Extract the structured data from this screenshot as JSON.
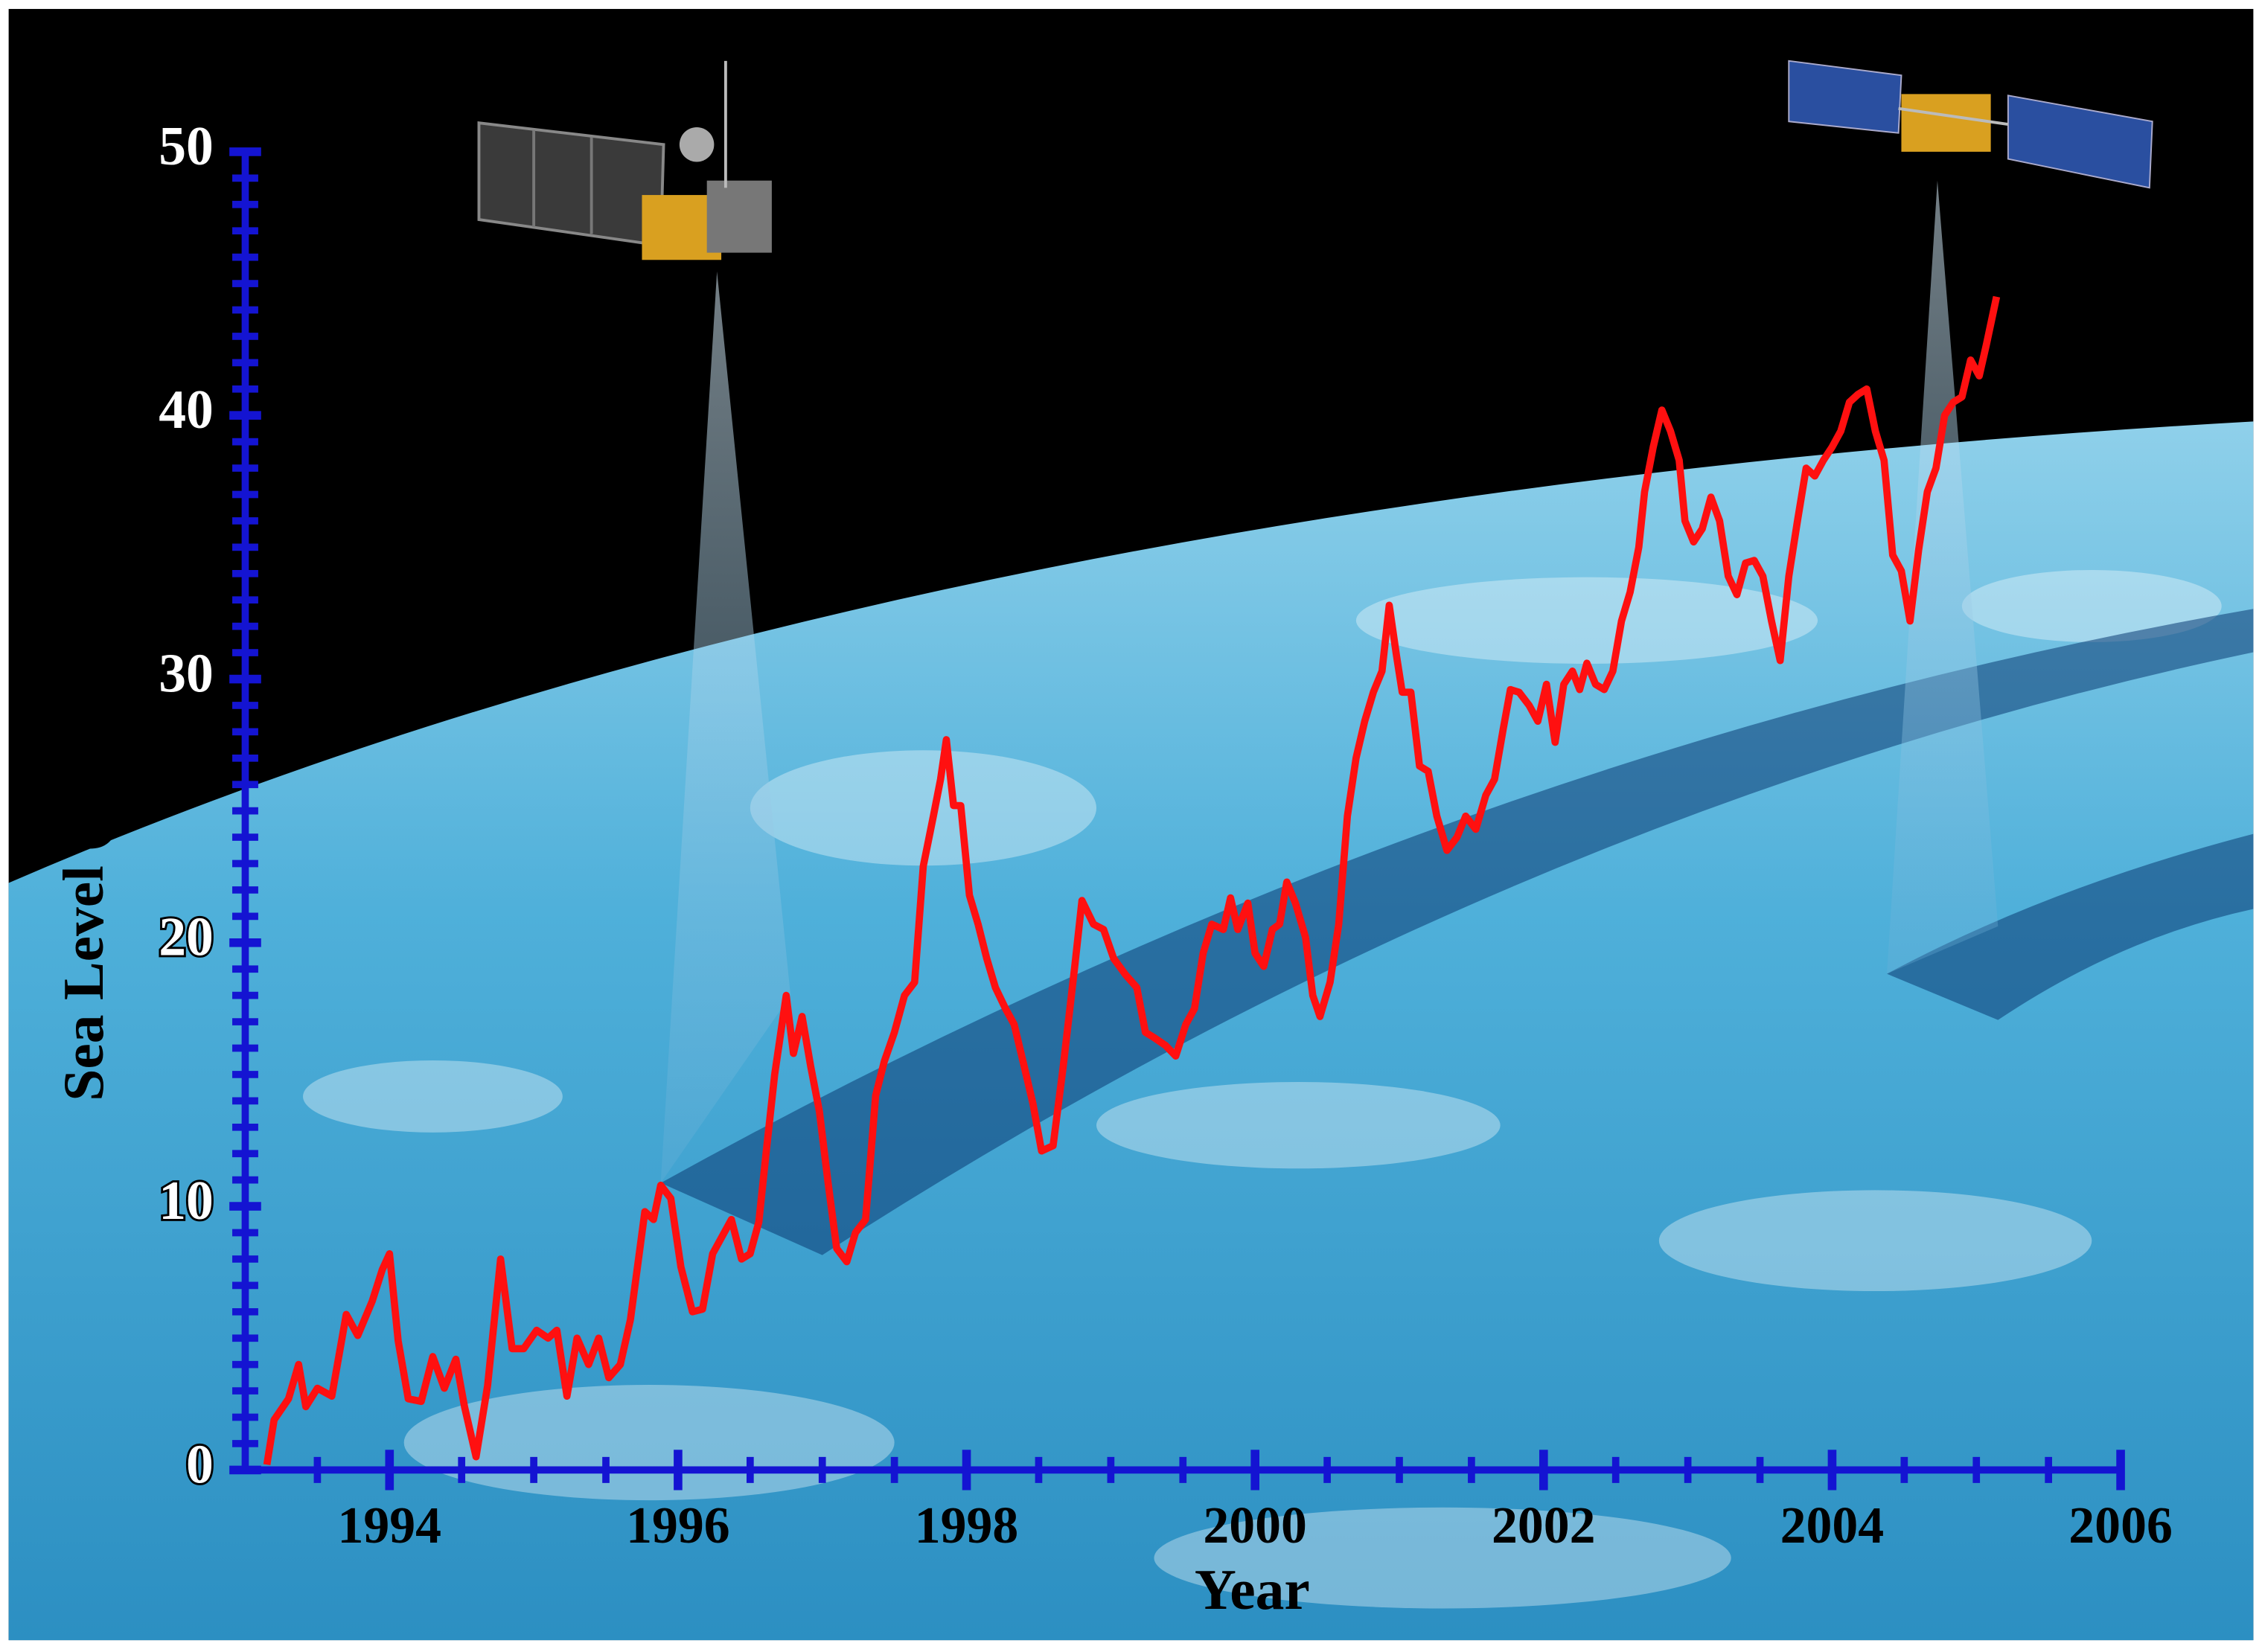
{
  "chart_data": {
    "type": "line",
    "x_label": "Year",
    "y_label": "Sea Level (mm)",
    "xlim": [
      1993,
      2006
    ],
    "xticks": [
      1994,
      1996,
      1998,
      2000,
      2002,
      2004,
      2006
    ],
    "x_minor_per_major": 4,
    "ylim": [
      0,
      50
    ],
    "yticks": [
      0,
      10,
      20,
      30,
      40,
      50
    ],
    "y_minor_per_major": 10,
    "axis_color": "#1414d2",
    "series": [
      {
        "color": "#ff1010",
        "x": [
          1993.15,
          1993.2,
          1993.3,
          1993.37,
          1993.42,
          1993.5,
          1993.6,
          1993.7,
          1993.78,
          1993.88,
          1993.95,
          1994.0,
          1994.06,
          1994.13,
          1994.22,
          1994.3,
          1994.38,
          1994.46,
          1994.52,
          1994.6,
          1994.68,
          1994.77,
          1994.85,
          1994.93,
          1995.02,
          1995.1,
          1995.16,
          1995.23,
          1995.3,
          1995.38,
          1995.45,
          1995.52,
          1995.6,
          1995.67,
          1995.77,
          1995.83,
          1995.88,
          1995.95,
          1996.02,
          1996.1,
          1996.17,
          1996.24,
          1996.3,
          1996.37,
          1996.44,
          1996.5,
          1996.56,
          1996.61,
          1996.67,
          1996.75,
          1996.8,
          1996.86,
          1996.92,
          1996.98,
          1997.04,
          1997.1,
          1997.17,
          1997.23,
          1997.3,
          1997.37,
          1997.43,
          1997.5,
          1997.57,
          1997.64,
          1997.7,
          1997.77,
          1997.82,
          1997.86,
          1997.91,
          1997.96,
          1998.02,
          1998.08,
          1998.14,
          1998.2,
          1998.27,
          1998.33,
          1998.4,
          1998.46,
          1998.52,
          1998.6,
          1998.67,
          1998.75,
          1998.8,
          1998.88,
          1998.95,
          1999.02,
          1999.1,
          1999.18,
          1999.24,
          1999.3,
          1999.38,
          1999.45,
          1999.52,
          1999.58,
          1999.64,
          1999.7,
          1999.78,
          1999.83,
          1999.88,
          1999.95,
          2000.0,
          2000.06,
          2000.12,
          2000.17,
          2000.22,
          2000.28,
          2000.35,
          2000.4,
          2000.45,
          2000.52,
          2000.58,
          2000.64,
          2000.7,
          2000.76,
          2000.82,
          2000.88,
          2000.93,
          2000.98,
          2001.02,
          2001.08,
          2001.14,
          2001.2,
          2001.26,
          2001.33,
          2001.4,
          2001.46,
          2001.53,
          2001.6,
          2001.66,
          2001.72,
          2001.77,
          2001.83,
          2001.9,
          2001.96,
          2002.02,
          2002.08,
          2002.14,
          2002.2,
          2002.25,
          2002.3,
          2002.36,
          2002.42,
          2002.48,
          2002.54,
          2002.6,
          2002.66,
          2002.7,
          2002.76,
          2002.82,
          2002.88,
          2002.94,
          2002.98,
          2003.04,
          2003.1,
          2003.16,
          2003.22,
          2003.28,
          2003.34,
          2003.4,
          2003.46,
          2003.52,
          2003.58,
          2003.64,
          2003.7,
          2003.76,
          2003.82,
          2003.88,
          2003.94,
          2004.0,
          2004.06,
          2004.12,
          2004.18,
          2004.24,
          2004.3,
          2004.36,
          2004.42,
          2004.48,
          2004.54,
          2004.6,
          2004.66,
          2004.72,
          2004.78,
          2004.84,
          2004.9,
          2004.96,
          2005.02,
          2005.07,
          2005.14
        ],
        "values": [
          0.2,
          1.9,
          2.7,
          4.0,
          2.4,
          3.1,
          2.8,
          5.9,
          5.1,
          6.4,
          7.6,
          8.2,
          4.9,
          2.7,
          2.6,
          4.3,
          3.1,
          4.2,
          2.4,
          0.5,
          3.2,
          8.0,
          4.6,
          4.6,
          5.3,
          5.0,
          5.3,
          2.8,
          5.0,
          4.0,
          5.0,
          3.5,
          4.0,
          5.7,
          9.8,
          9.5,
          10.8,
          10.3,
          7.7,
          6.0,
          6.1,
          8.2,
          8.8,
          9.5,
          8.0,
          8.2,
          9.4,
          12.0,
          15.0,
          18.0,
          15.8,
          17.2,
          15.3,
          13.6,
          10.9,
          8.4,
          7.9,
          9.0,
          9.5,
          14.2,
          15.5,
          16.6,
          18.0,
          18.5,
          22.9,
          24.8,
          26.2,
          27.7,
          25.2,
          25.2,
          21.8,
          20.7,
          19.4,
          18.3,
          17.5,
          16.9,
          15.3,
          13.9,
          12.1,
          12.3,
          15.3,
          19.1,
          21.6,
          20.7,
          20.5,
          19.4,
          18.8,
          18.3,
          16.6,
          16.4,
          16.1,
          15.7,
          16.9,
          17.5,
          19.6,
          20.7,
          20.5,
          21.7,
          20.5,
          21.5,
          19.6,
          19.1,
          20.5,
          20.7,
          22.3,
          21.5,
          20.2,
          18.0,
          17.2,
          18.5,
          20.7,
          24.8,
          27.0,
          28.4,
          29.5,
          30.3,
          32.8,
          30.9,
          29.5,
          29.5,
          26.7,
          26.5,
          24.8,
          23.5,
          24.0,
          24.8,
          24.3,
          25.6,
          26.2,
          28.1,
          29.6,
          29.5,
          29.0,
          28.4,
          29.8,
          27.6,
          29.8,
          30.3,
          29.6,
          30.6,
          29.8,
          29.6,
          30.3,
          32.2,
          33.3,
          35.0,
          37.1,
          38.8,
          40.2,
          39.4,
          38.3,
          36.0,
          35.2,
          35.7,
          36.9,
          36.0,
          33.9,
          33.2,
          34.4,
          34.5,
          33.9,
          32.2,
          30.7,
          33.9,
          36.0,
          38.0,
          37.7,
          38.3,
          38.8,
          39.4,
          40.5,
          40.8,
          41.0,
          39.4,
          38.3,
          34.7,
          34.1,
          32.2,
          34.9,
          37.1,
          38.0,
          40.0,
          40.5,
          40.7,
          42.1,
          41.5,
          42.7,
          44.5
        ]
      }
    ]
  }
}
